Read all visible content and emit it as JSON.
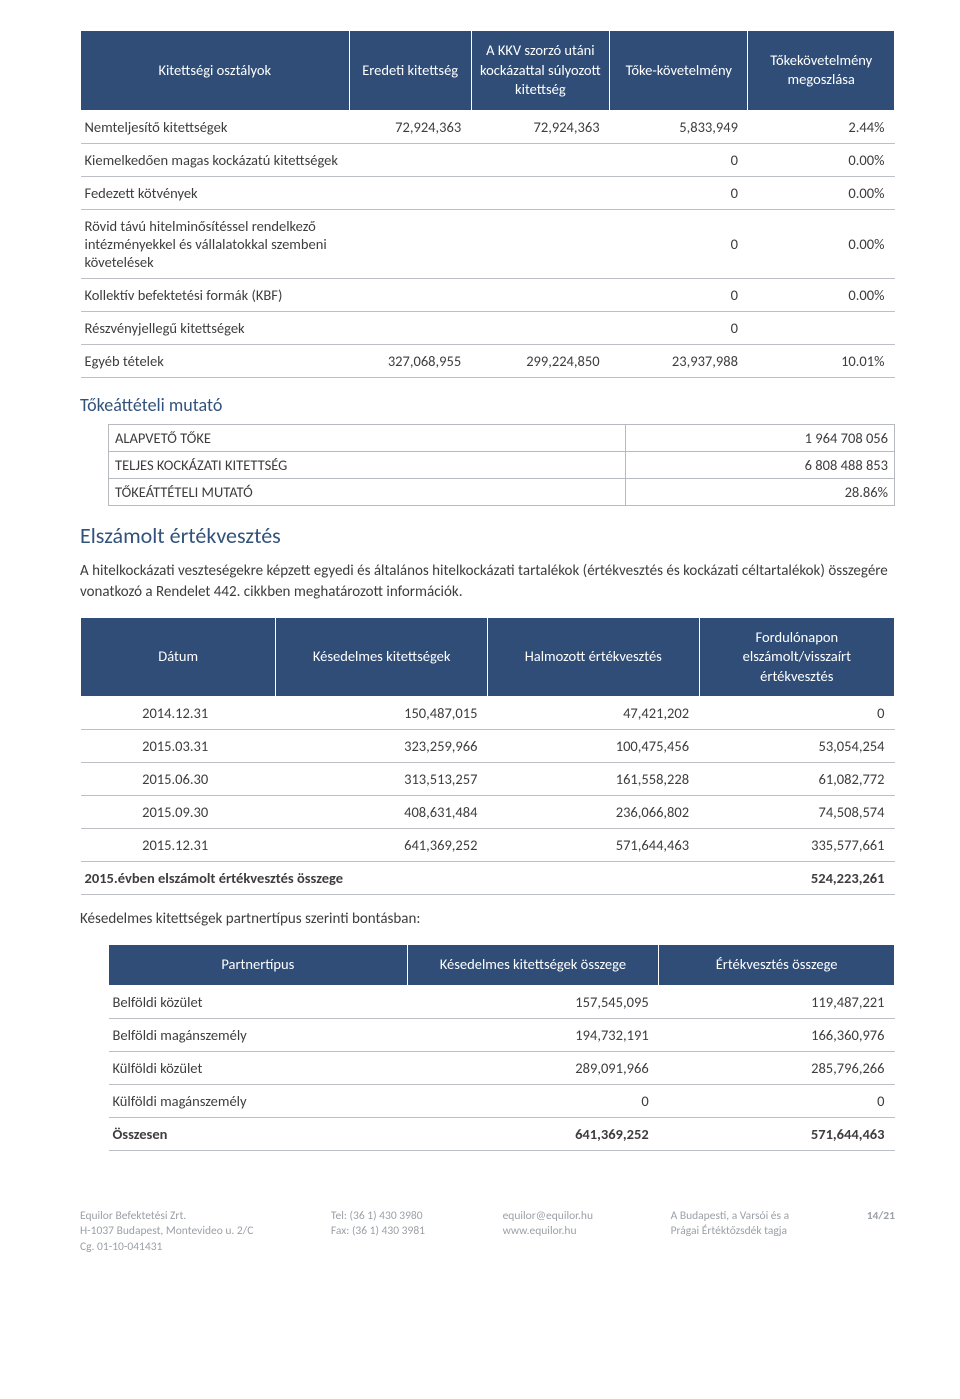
{
  "colors": {
    "header_bg": "#2f4d77",
    "header_fg": "#ffffff",
    "row_border": "#bcbfc4",
    "section_title": "#31527a",
    "body_text": "#3d3d3d",
    "footer_text": "#9ba0a7"
  },
  "table1": {
    "headers": [
      "Kitettségi osztályok",
      "Eredeti kitettség",
      "A KKV szorzó utáni kockázattal súlyozott kitettség",
      "Tőke-követelmény",
      "Tőkekövetelmény megoszlása"
    ],
    "rows": [
      {
        "c0": "Nemteljesítő kitettségek",
        "c1": "72,924,363",
        "c2": "72,924,363",
        "c3": "5,833,949",
        "c4": "2.44%"
      },
      {
        "c0": "Kiemelkedően magas kockázatú kitettségek",
        "c1": "",
        "c2": "",
        "c3": "0",
        "c4": "0.00%"
      },
      {
        "c0": "Fedezett kötvények",
        "c1": "",
        "c2": "",
        "c3": "0",
        "c4": "0.00%"
      },
      {
        "c0": "Rövid távú hitelminősítéssel rendelkező intézményekkel és vállalatokkal szembeni követelések",
        "c1": "",
        "c2": "",
        "c3": "0",
        "c4": "0.00%"
      },
      {
        "c0": "Kollektív befektetési formák (KBF)",
        "c1": "",
        "c2": "",
        "c3": "0",
        "c4": "0.00%"
      },
      {
        "c0": "Részvényjellegű kitettségek",
        "c1": "",
        "c2": "",
        "c3": "0",
        "c4": ""
      },
      {
        "c0": "Egyéb tételek",
        "c1": "327,068,955",
        "c2": "299,224,850",
        "c3": "23,937,988",
        "c4": "10.01%"
      }
    ]
  },
  "section1_title": "Tőkeáttételi mutató",
  "mutato": {
    "rows": [
      {
        "label": "ALAPVETŐ TŐKE",
        "value": "1 964 708 056"
      },
      {
        "label": "TELJES KOCKÁZATI KITETTSÉG",
        "value": "6 808 488 853"
      },
      {
        "label": "TŐKEÁTTÉTELI MUTATÓ",
        "value": "28.86%"
      }
    ]
  },
  "section2_title": "Elszámolt értékvesztés",
  "section2_body": "A hitelkockázati veszteségekre képzett egyedi és általános hitelkockázati tartalékok (értékvesztés és kockázati céltartalékok) összegére vonatkozó a Rendelet 442. cikkben meghatározott információk.",
  "table2": {
    "headers": [
      "Dátum",
      "Késedelmes kitettségek",
      "Halmozott értékvesztés",
      "Fordulónapon elszámolt/visszaírt értékvesztés"
    ],
    "rows": [
      {
        "c0": "2014.12.31",
        "c1": "150,487,015",
        "c2": "47,421,202",
        "c3": "0"
      },
      {
        "c0": "2015.03.31",
        "c1": "323,259,966",
        "c2": "100,475,456",
        "c3": "53,054,254"
      },
      {
        "c0": "2015.06.30",
        "c1": "313,513,257",
        "c2": "161,558,228",
        "c3": "61,082,772"
      },
      {
        "c0": "2015.09.30",
        "c1": "408,631,484",
        "c2": "236,066,802",
        "c3": "74,508,574"
      },
      {
        "c0": "2015.12.31",
        "c1": "641,369,252",
        "c2": "571,644,463",
        "c3": "335,577,661"
      }
    ],
    "total": {
      "c0": "2015.évben elszámolt értékvesztés összege",
      "c1": "",
      "c2": "",
      "c3": "524,223,261"
    }
  },
  "table3_intro": "Késedelmes kitettségek partnertípus szerinti bontásban:",
  "table3": {
    "headers": [
      "Partnertípus",
      "Késedelmes kitettségek összege",
      "Értékvesztés összege"
    ],
    "rows": [
      {
        "c0": "Belföldi közület",
        "c1": "157,545,095",
        "c2": "119,487,221"
      },
      {
        "c0": "Belföldi magánszemély",
        "c1": "194,732,191",
        "c2": "166,360,976"
      },
      {
        "c0": "Külföldi közület",
        "c1": "289,091,966",
        "c2": "285,796,266"
      },
      {
        "c0": "Külföldi magánszemély",
        "c1": "0",
        "c2": "0"
      }
    ],
    "total": {
      "c0": "Összesen",
      "c1": "641,369,252",
      "c2": "571,644,463"
    }
  },
  "footer": {
    "col1": {
      "l1": "Equilor Befektetési Zrt.",
      "l2": "H-1037 Budapest, Montevideo u. 2/C",
      "l3": "Cg. 01-10-041431"
    },
    "col2": {
      "l1": "Tel: (36 1) 430 3980",
      "l2": "Fax: (36 1) 430 3981"
    },
    "col3": {
      "l1": "equilor@equilor.hu",
      "l2": "www.equilor.hu"
    },
    "col4": {
      "l1": "A Budapesti, a Varsói és a",
      "l2": "Prágai Értéktőzsdék tagja"
    },
    "page": "14/21"
  }
}
